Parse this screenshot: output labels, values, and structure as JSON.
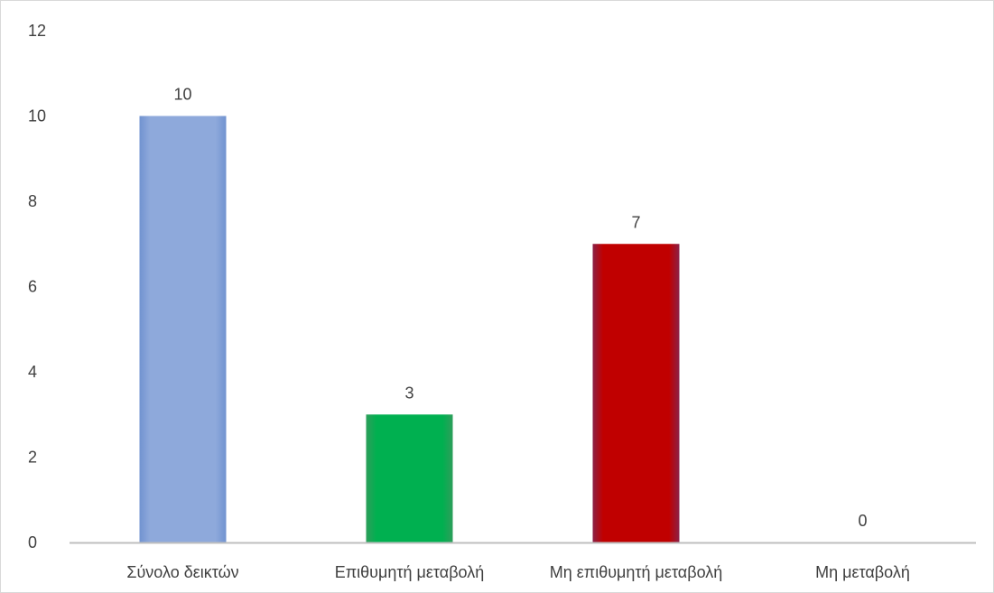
{
  "chart_data": {
    "type": "bar",
    "title": "",
    "xlabel": "",
    "ylabel": "",
    "categories": [
      "Σύνολο δεικτών",
      "Επιθυμητή μεταβολή",
      "Μη επιθυμητή μεταβολή",
      "Μη μεταβολή"
    ],
    "values": [
      10,
      3,
      7,
      0
    ],
    "data_labels": [
      "10",
      "3",
      "7",
      "0"
    ],
    "bar_colors": [
      "#8EA9DB",
      "#00B050",
      "#C00000",
      "#FFFFFF"
    ],
    "bar_edge_colors": [
      "#7193D0",
      "#2E9E5B",
      "#8B2147",
      "#FFFFFF"
    ],
    "ylim": [
      0,
      12
    ],
    "yticks": [
      0,
      2,
      4,
      6,
      8,
      10,
      12
    ],
    "ytick_labels": [
      "0",
      "2",
      "4",
      "6",
      "8",
      "10",
      "12"
    ],
    "grid": false,
    "legend": "none",
    "axis_color": "#BFBFBF",
    "text_color": "#404040"
  }
}
